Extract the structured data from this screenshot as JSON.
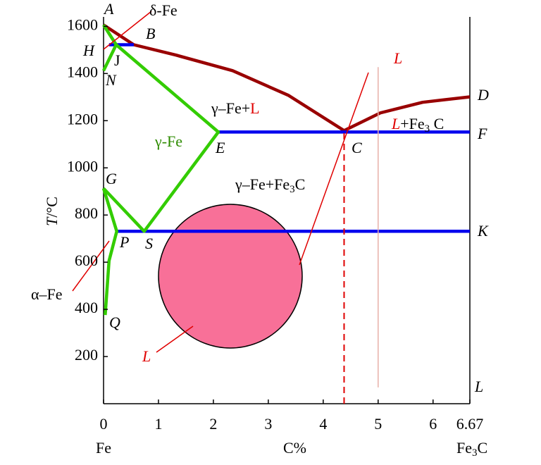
{
  "chart_data": {
    "type": "phase-diagram",
    "xlim": [
      0,
      6.67
    ],
    "ylim": [
      0,
      1640
    ],
    "xticks": [
      0,
      1,
      2,
      3,
      4,
      5,
      6,
      6.67
    ],
    "yticks": [
      200,
      400,
      600,
      800,
      1000,
      1200,
      1400,
      1600
    ],
    "x_label": "C%",
    "x_left_label": "Fe",
    "x_right_label": {
      "main": "Fe",
      "sub": "3",
      "tail": "C"
    },
    "y_label": {
      "italic": "T",
      "rest": "/°C"
    },
    "point_labels": [
      "A",
      "B",
      "H",
      "J",
      "N",
      "E",
      "C",
      "D",
      "F",
      "G",
      "S",
      "P",
      "K",
      "Q",
      "L"
    ],
    "regions": {
      "delta_fe": "δ-Fe",
      "gamma_fe": "γ-Fe",
      "gamma_l": {
        "main": "γ–Fe+",
        "red": "L"
      },
      "gamma_fe3c": {
        "main": "γ–Fe+Fe",
        "sub": "3",
        "tail": "C"
      },
      "l_fe3c": {
        "red": "L",
        "main": "+Fe",
        "sub": "3",
        "tail": " C"
      },
      "alpha_fe": "α–Fe",
      "l_top": "L",
      "l_circle": "L"
    },
    "lines": [
      {
        "color": "#990000",
        "style": "solid",
        "x": [
          0,
          0.55,
          1.32,
          2.35,
          3.37,
          4.38
        ],
        "y": [
          1606,
          1522,
          1478,
          1412,
          1307,
          1158
        ]
      },
      {
        "color": "#990000",
        "style": "solid",
        "x": [
          4.38,
          5.04,
          5.81,
          6.67
        ],
        "y": [
          1158,
          1233,
          1278,
          1301
        ]
      },
      {
        "color": "#0000ee",
        "style": "solid",
        "x": [
          0.1,
          0.55
        ],
        "y": [
          1522,
          1522
        ]
      },
      {
        "color": "#0000ee",
        "style": "solid",
        "x": [
          2.09,
          6.67
        ],
        "y": [
          1152,
          1152
        ]
      },
      {
        "color": "#0000ee",
        "style": "solid",
        "x": [
          0.24,
          6.67
        ],
        "y": [
          731,
          731
        ]
      },
      {
        "color": "#33cc00",
        "style": "solid",
        "x": [
          0,
          0.23,
          0
        ],
        "y": [
          1606,
          1522,
          1412
        ]
      },
      {
        "color": "#33cc00",
        "style": "solid",
        "x": [
          0.23,
          2.09,
          0.74,
          0
        ],
        "y": [
          1522,
          1152,
          731,
          913
        ]
      },
      {
        "color": "#33cc00",
        "style": "solid",
        "x": [
          0,
          0.24,
          0.1,
          0.03
        ],
        "y": [
          913,
          731,
          606,
          376
        ]
      },
      {
        "color": "#e00000",
        "style": "dashed",
        "x": [
          4.38,
          4.38
        ],
        "y": [
          0,
          1158
        ]
      },
      {
        "color": "#e8b0a8",
        "style": "thin",
        "x": [
          5.0,
          5.0
        ],
        "y": [
          69,
          1427
        ]
      }
    ]
  }
}
